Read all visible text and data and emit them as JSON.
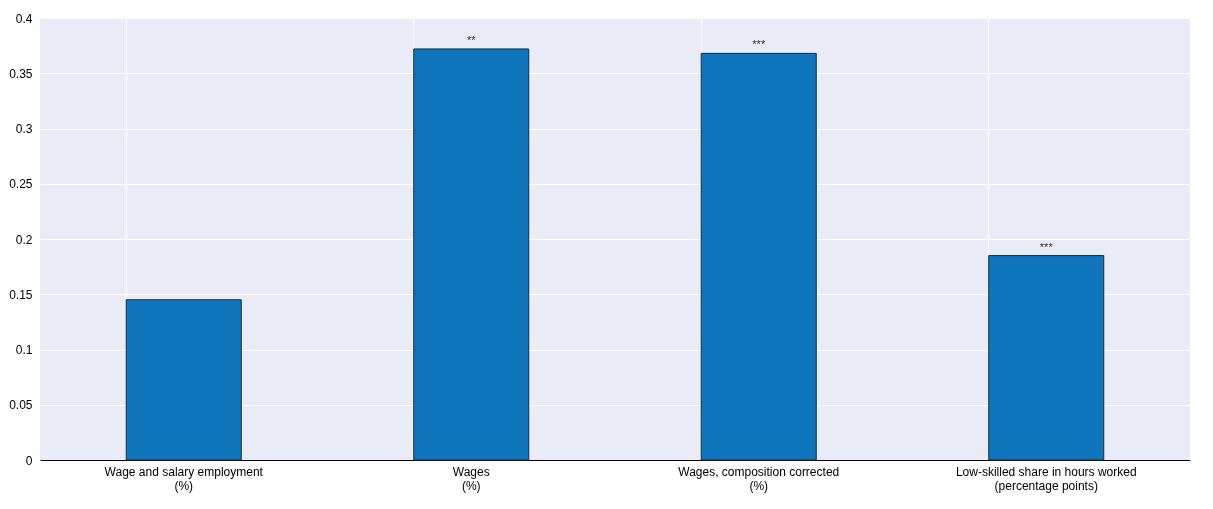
{
  "chart_data": {
    "type": "bar",
    "categories": [
      "Wage and salary employment\n(%)",
      "Wages\n(%)",
      "Wages, composition corrected\n(%)",
      "Low-skilled share in hours worked\n(percentage points)"
    ],
    "values": [
      0.145,
      0.372,
      0.368,
      0.185
    ],
    "color": "#0f75bc",
    "ylim": [
      0,
      0.4
    ],
    "yticks": [
      0,
      0.05,
      0.1,
      0.15,
      0.2,
      0.25,
      0.3,
      0.35,
      0.4
    ],
    "grid": true,
    "annotations": [
      {
        "text": "**",
        "x": "Wages\n(%)",
        "y": 0.372
      },
      {
        "text": "***",
        "x": "Wages, composition corrected\n(%)",
        "y": 0.368
      },
      {
        "text": "***",
        "x": "Low-skilled share in hours worked\n(percentage points)",
        "y": 0.185
      }
    ]
  }
}
